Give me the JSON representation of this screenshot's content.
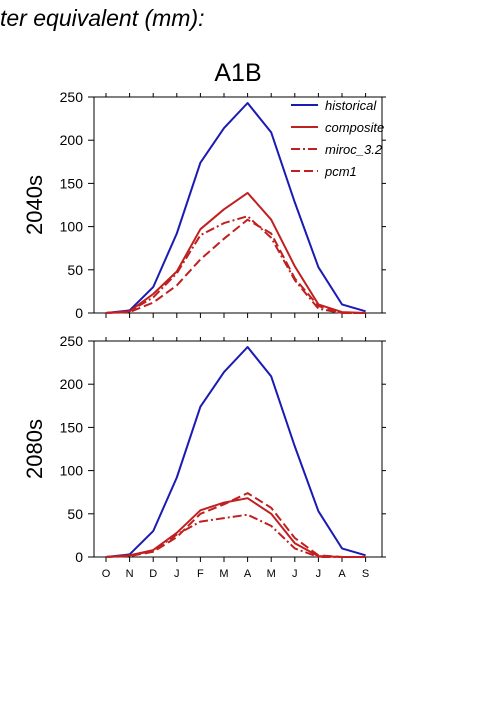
{
  "header": {
    "title": "ter equivalent (mm):"
  },
  "chart_data": [
    {
      "type": "line",
      "panel_title": "A1B",
      "ylabel": "2040s",
      "ylim": [
        0,
        250
      ],
      "yticks": [
        "0",
        "50",
        "100",
        "150",
        "200",
        "250"
      ],
      "categories": [
        "O",
        "N",
        "D",
        "J",
        "F",
        "M",
        "A",
        "M",
        "J",
        "J",
        "A",
        "S"
      ],
      "legend": {
        "placement": "top-right",
        "entries": [
          "historical",
          "composite",
          "miroc_3.2",
          "pcm1"
        ]
      },
      "series": [
        {
          "name": "historical",
          "color": "#1a1ab4",
          "dash": "solid",
          "values": [
            0,
            3,
            30,
            92,
            174,
            214,
            243,
            209,
            128,
            53,
            10,
            2
          ]
        },
        {
          "name": "composite",
          "color": "#c02020",
          "dash": "solid",
          "values": [
            0,
            2,
            22,
            48,
            97,
            120,
            139,
            108,
            54,
            10,
            1,
            0
          ]
        },
        {
          "name": "miroc_3.2",
          "color": "#c02020",
          "dash": "dashdot",
          "values": [
            0,
            2,
            18,
            46,
            90,
            104,
            112,
            87,
            38,
            5,
            0,
            0
          ]
        },
        {
          "name": "pcm1",
          "color": "#c02020",
          "dash": "dash",
          "values": [
            0,
            1,
            12,
            32,
            62,
            86,
            108,
            92,
            40,
            8,
            0,
            0
          ]
        }
      ]
    },
    {
      "type": "line",
      "panel_title": "",
      "ylabel": "2080s",
      "ylim": [
        0,
        250
      ],
      "yticks": [
        "0",
        "50",
        "100",
        "150",
        "200",
        "250"
      ],
      "categories": [
        "O",
        "N",
        "D",
        "J",
        "F",
        "M",
        "A",
        "M",
        "J",
        "J",
        "A",
        "S"
      ],
      "series": [
        {
          "name": "historical",
          "color": "#1a1ab4",
          "dash": "solid",
          "values": [
            0,
            3,
            30,
            92,
            174,
            214,
            243,
            209,
            128,
            53,
            10,
            2
          ]
        },
        {
          "name": "composite",
          "color": "#c02020",
          "dash": "solid",
          "values": [
            0,
            2,
            8,
            28,
            54,
            63,
            68,
            50,
            16,
            1,
            0,
            0
          ]
        },
        {
          "name": "miroc_3.2",
          "color": "#c02020",
          "dash": "dashdot",
          "values": [
            0,
            2,
            7,
            26,
            41,
            45,
            49,
            36,
            10,
            0,
            0,
            0
          ]
        },
        {
          "name": "pcm1",
          "color": "#c02020",
          "dash": "dash",
          "values": [
            0,
            1,
            6,
            23,
            50,
            61,
            74,
            57,
            22,
            2,
            0,
            0
          ]
        }
      ]
    }
  ]
}
